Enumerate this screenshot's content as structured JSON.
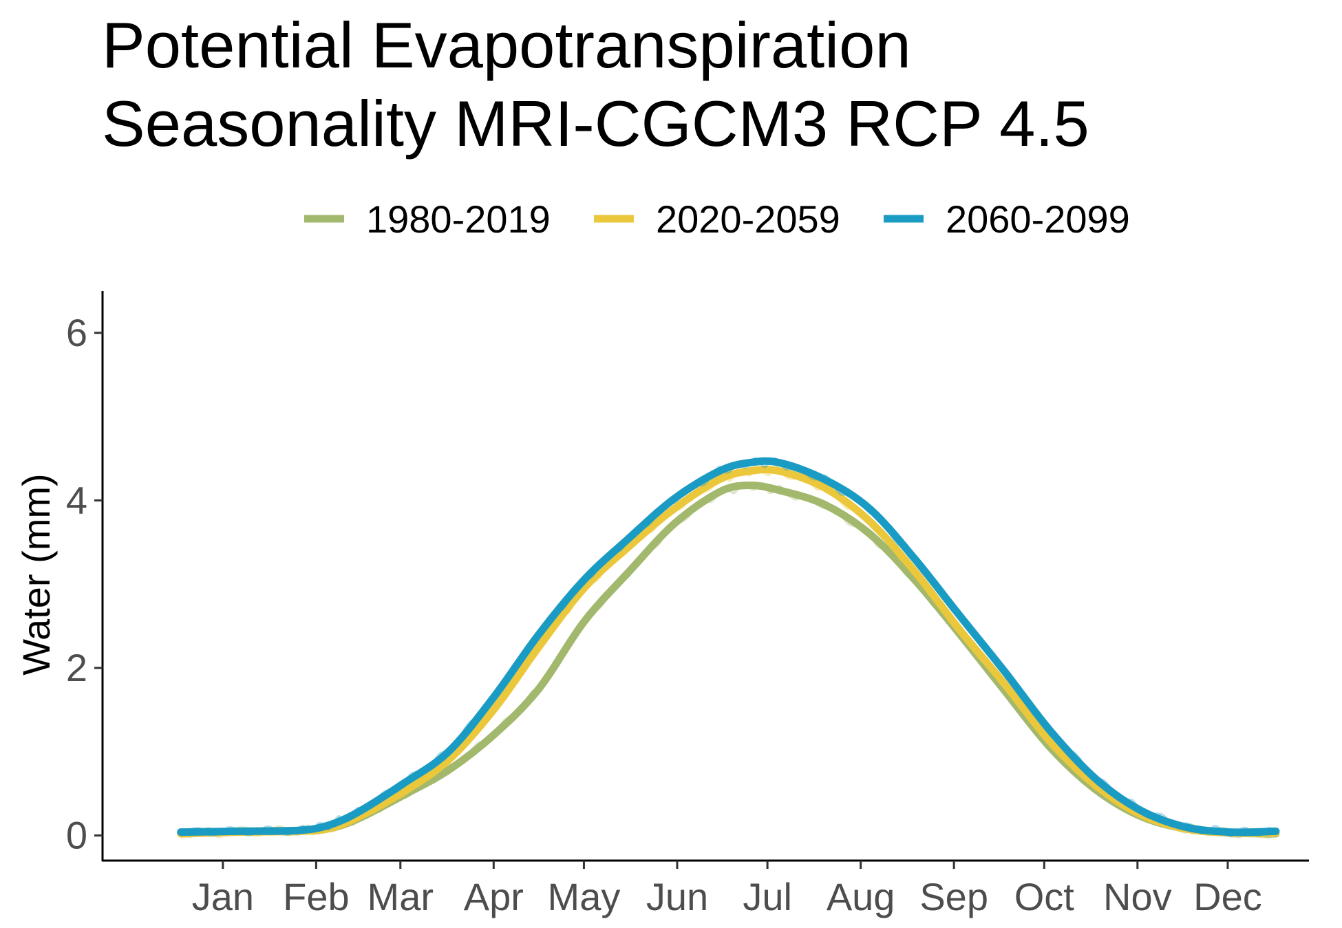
{
  "chart_data": {
    "type": "line",
    "title": "Potential Evapotranspiration\nSeasonality MRI-CGCM3 RCP 4.5",
    "title_lines": [
      "Potential Evapotranspiration",
      "Seasonality MRI-CGCM3 RCP 4.5"
    ],
    "xlabel": "",
    "ylabel": "Water (mm)",
    "x_unit": "day of year",
    "xlim": [
      -25,
      376
    ],
    "ylim": [
      -0.3,
      6.5
    ],
    "yticks": [
      0,
      2,
      4,
      6
    ],
    "ytick_labels": [
      "0",
      "2",
      "4",
      "6"
    ],
    "x_ticks": [
      {
        "label": "Jan",
        "day": 15
      },
      {
        "label": "Feb",
        "day": 46
      },
      {
        "label": "Mar",
        "day": 74
      },
      {
        "label": "Apr",
        "day": 105
      },
      {
        "label": "May",
        "day": 135
      },
      {
        "label": "Jun",
        "day": 166
      },
      {
        "label": "Jul",
        "day": 196
      },
      {
        "label": "Aug",
        "day": 227
      },
      {
        "label": "Sep",
        "day": 258
      },
      {
        "label": "Oct",
        "day": 288
      },
      {
        "label": "Nov",
        "day": 319
      },
      {
        "label": "Dec",
        "day": 349
      }
    ],
    "grid": false,
    "legend_position": "top",
    "series": [
      {
        "name": "1980-2019",
        "color": "#a2b86c",
        "x": [
          1,
          20,
          40,
          50,
          60,
          75,
          90,
          105,
          120,
          135,
          150,
          165,
          180,
          190,
          200,
          215,
          230,
          245,
          260,
          275,
          290,
          305,
          320,
          335,
          350,
          365
        ],
        "y": [
          0.03,
          0.05,
          0.06,
          0.08,
          0.2,
          0.48,
          0.78,
          1.2,
          1.75,
          2.55,
          3.15,
          3.72,
          4.1,
          4.18,
          4.12,
          3.95,
          3.6,
          3.05,
          2.4,
          1.72,
          1.05,
          0.55,
          0.23,
          0.08,
          0.03,
          0.02
        ]
      },
      {
        "name": "2020-2059",
        "color": "#ebc73c",
        "x": [
          1,
          20,
          40,
          50,
          60,
          75,
          90,
          105,
          120,
          135,
          150,
          165,
          180,
          190,
          200,
          215,
          230,
          245,
          260,
          275,
          290,
          305,
          320,
          335,
          350,
          365
        ],
        "y": [
          0.02,
          0.04,
          0.05,
          0.08,
          0.22,
          0.52,
          0.9,
          1.5,
          2.25,
          2.95,
          3.45,
          3.9,
          4.25,
          4.35,
          4.35,
          4.15,
          3.75,
          3.15,
          2.45,
          1.8,
          1.12,
          0.6,
          0.25,
          0.08,
          0.03,
          0.03
        ]
      },
      {
        "name": "2060-2099",
        "color": "#1a9bc3",
        "x": [
          1,
          20,
          40,
          50,
          60,
          75,
          90,
          105,
          120,
          135,
          150,
          165,
          180,
          190,
          200,
          215,
          230,
          245,
          260,
          275,
          290,
          305,
          320,
          335,
          350,
          365
        ],
        "y": [
          0.04,
          0.05,
          0.06,
          0.12,
          0.28,
          0.62,
          1.0,
          1.65,
          2.4,
          3.05,
          3.55,
          4.02,
          4.35,
          4.45,
          4.45,
          4.25,
          3.9,
          3.3,
          2.62,
          1.95,
          1.25,
          0.68,
          0.3,
          0.1,
          0.04,
          0.05
        ]
      }
    ]
  }
}
